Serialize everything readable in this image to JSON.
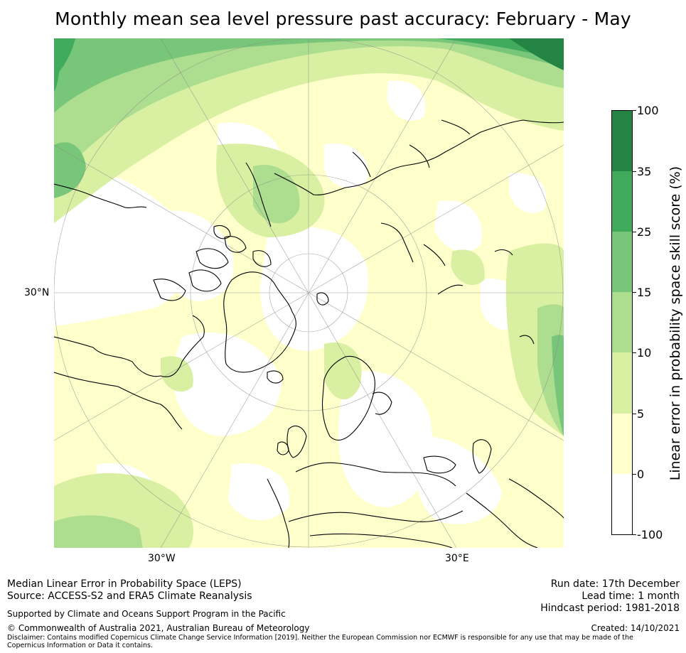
{
  "title": "Monthly mean sea level pressure past accuracy: February - May",
  "map": {
    "projection": "north-polar-stereographic",
    "lon_labels": [
      "30°W",
      "30°E"
    ],
    "lat_labels": [
      "30°N"
    ]
  },
  "colorbar": {
    "title": "Linear error in probability space skill score (%)",
    "bins": [
      {
        "from": "-100",
        "to": "0",
        "color": "#ffffff"
      },
      {
        "from": "0",
        "to": "5",
        "color": "#ffffcc"
      },
      {
        "from": "5",
        "to": "10",
        "color": "#d9f0a3"
      },
      {
        "from": "10",
        "to": "15",
        "color": "#addd8e"
      },
      {
        "from": "15",
        "to": "25",
        "color": "#78c679"
      },
      {
        "from": "25",
        "to": "35",
        "color": "#41ab5d"
      },
      {
        "from": "35",
        "to": "100",
        "color": "#238443"
      }
    ],
    "tick_labels": [
      "-100",
      "0",
      "5",
      "10",
      "15",
      "25",
      "35",
      "100"
    ]
  },
  "footer": {
    "left": {
      "line1": "Median Linear Error in Probability Space (LEPS)",
      "line2": "Source: ACCESS-S2 and ERA5 Climate Reanalysis",
      "support": "Supported by Climate and Oceans Support Program in the Pacific",
      "copyright": "© Commonwealth of Australia 2021, Australian Bureau of Meteorology",
      "disclaimer": "Disclaimer: Contains modified Copernicus Climate Change Service Information [2019]. Neither the European Commission nor ECMWF is responsible for any use that may be made of the Copernicus Information or Data it contains."
    },
    "right": {
      "run_date": "Run date: 17th December",
      "lead_time": "Lead time: 1 month",
      "hindcast": "Hindcast period: 1981-2018",
      "created": "Created: 14/10/2021"
    }
  }
}
